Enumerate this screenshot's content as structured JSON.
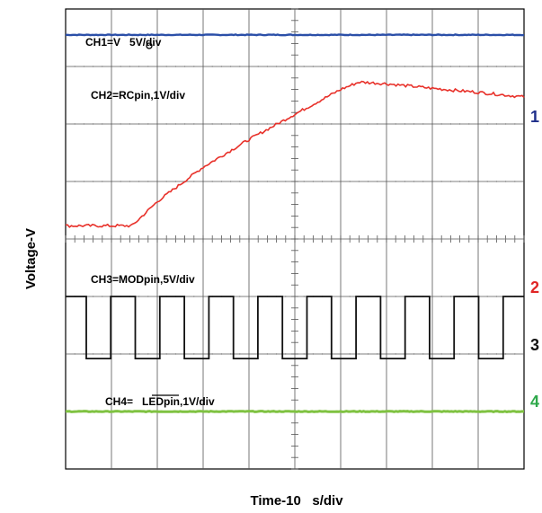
{
  "chart_data": {
    "type": "line",
    "title": "",
    "xlabel": "Time-10   s/div",
    "ylabel": "Voltage-V",
    "x_divisions": 10,
    "y_divisions": 8,
    "xlim": [
      0,
      10
    ],
    "ylim": [
      0,
      8
    ],
    "grid": true,
    "series": [
      {
        "name": "CH1=V   5V/div",
        "marker": "1",
        "color": "#2b4fa8",
        "label_color": "#1f2f8a",
        "x": [
          0,
          10
        ],
        "y": [
          7.55,
          7.55
        ]
      },
      {
        "name": "CH2=RCpin,1V/div",
        "marker": "",
        "color": "#e8312a",
        "x": [
          0,
          1.45,
          2.0,
          3.0,
          4.0,
          5.0,
          6.0,
          6.4,
          7.0,
          8.0,
          9.0,
          10.0
        ],
        "y": [
          4.23,
          4.23,
          4.65,
          5.25,
          5.73,
          6.17,
          6.6,
          6.73,
          6.7,
          6.62,
          6.55,
          6.47
        ]
      },
      {
        "name": "CH3=MODpin,5V/div",
        "marker": "3",
        "color": "#111111",
        "label_color": "#111111",
        "type": "square",
        "period": 1.07,
        "duty": 0.5,
        "start_high": 0.45,
        "high": 3.0,
        "low": 1.92,
        "x": [
          0,
          10
        ]
      },
      {
        "name": "CH4=   LEDpin,1V/div",
        "marker": "4",
        "color": "#7fc241",
        "label_color": "#2ea84a",
        "x": [
          0,
          10
        ],
        "y": [
          1.0,
          1.0
        ]
      }
    ],
    "extra_markers": [
      {
        "text": "2",
        "color": "#e02525"
      }
    ]
  }
}
